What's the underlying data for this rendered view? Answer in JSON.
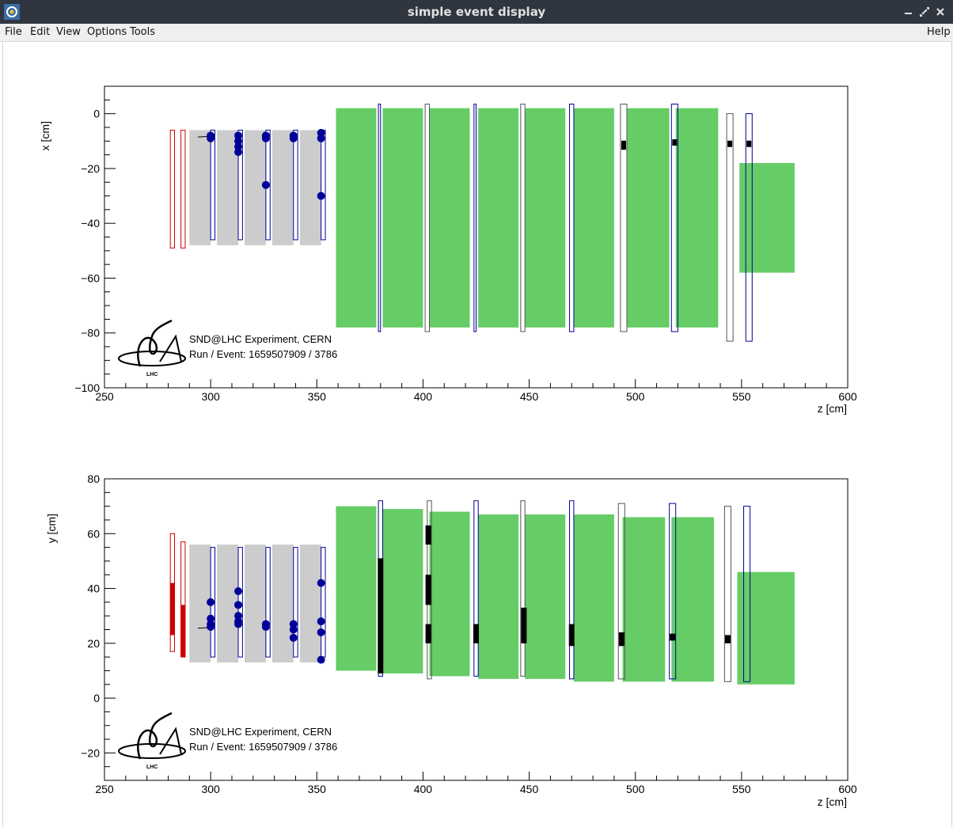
{
  "window": {
    "title": "simple event display"
  },
  "menu": {
    "file": "File",
    "edit": "Edit",
    "view": "View",
    "options": "Options",
    "tools": "Tools",
    "help": "Help"
  },
  "colors": {
    "titlebar": "#2f3640",
    "muon_block": "#66cc66",
    "target_wall": "#cccccc",
    "hit_blue": "#000099",
    "hit_black": "#000000",
    "veto_red": "#cc0000"
  },
  "icons": {
    "app": "root-app-icon",
    "minimize": "minimize-icon",
    "maximize": "maximize-icon",
    "close": "close-icon"
  },
  "label": {
    "experiment": "SND@LHC Experiment, CERN",
    "run_event": "Run / Event: 1659507909 / 3786",
    "logo_text": "LHC"
  },
  "chart_data": [
    {
      "type": "scatter",
      "view": "top",
      "xlabel": "z [cm]",
      "ylabel": "x [cm]",
      "xlim": [
        250,
        600
      ],
      "ylim": [
        -100,
        10
      ],
      "x_ticks": [
        250,
        300,
        350,
        400,
        450,
        500,
        550,
        600
      ],
      "y_ticks": [
        0,
        -20,
        -40,
        -60,
        -80,
        -100
      ],
      "y_tick_labels": [
        "0",
        "−20",
        "−40",
        "−60",
        "−80",
        "−100"
      ],
      "veto_planes": [
        [
          281,
          283,
          -49,
          -6
        ],
        [
          286,
          288,
          -49,
          -6
        ]
      ],
      "target_walls": [
        [
          290,
          300,
          -48,
          -6
        ],
        [
          303,
          313,
          -48,
          -6
        ],
        [
          316,
          326,
          -48,
          -6
        ],
        [
          329,
          339,
          -48,
          -6
        ],
        [
          342,
          352,
          -48,
          -6
        ]
      ],
      "target_planes": [
        [
          300,
          302,
          -46,
          -6
        ],
        [
          313,
          315,
          -46,
          -6
        ],
        [
          326,
          328,
          -46,
          -6
        ],
        [
          339,
          341,
          -46,
          -6
        ],
        [
          352,
          354,
          -46,
          -6
        ]
      ],
      "muon_blocks": [
        [
          359,
          378,
          -78,
          2
        ],
        [
          381,
          400,
          -78,
          2
        ],
        [
          403,
          422,
          -78,
          2
        ],
        [
          426,
          445,
          -78,
          2
        ],
        [
          448,
          467,
          -78,
          2
        ],
        [
          471,
          490,
          -78,
          2
        ],
        [
          496,
          516,
          -78,
          2
        ],
        [
          519,
          539,
          -78,
          2
        ],
        [
          549,
          575,
          -58,
          -18
        ]
      ],
      "muon_bars": [
        [
          379,
          380,
          -79.5,
          3.5
        ],
        [
          401,
          403,
          -79.5,
          3.5
        ],
        [
          424,
          425,
          -79.5,
          3.5
        ],
        [
          446,
          448,
          -79.5,
          3.5
        ],
        [
          469,
          471,
          -79.5,
          3.5
        ],
        [
          493,
          496,
          -79.5,
          3.5
        ],
        [
          517,
          520,
          -79.5,
          3.5
        ],
        [
          543,
          546,
          -83,
          0
        ],
        [
          552,
          555,
          -83,
          0
        ]
      ],
      "hits_blue": [
        [
          300,
          -9
        ],
        [
          300,
          -8
        ],
        [
          313,
          -8
        ],
        [
          313,
          -10
        ],
        [
          313,
          -12
        ],
        [
          313,
          -14
        ],
        [
          326,
          -8
        ],
        [
          326,
          -9
        ],
        [
          326,
          -26
        ],
        [
          339,
          -8
        ],
        [
          339,
          -9
        ],
        [
          352,
          -7
        ],
        [
          352,
          -9
        ],
        [
          352,
          -30
        ]
      ],
      "hits_black": [
        [
          494.5,
          -11
        ],
        [
          494.5,
          -12
        ],
        [
          518.5,
          -10.5
        ],
        [
          544.5,
          -11
        ],
        [
          553.5,
          -11
        ]
      ],
      "track": [
        [
          294,
          -8.5
        ],
        [
          300,
          -8.3
        ]
      ]
    },
    {
      "type": "scatter",
      "view": "side",
      "xlabel": "z [cm]",
      "ylabel": "y [cm]",
      "xlim": [
        250,
        600
      ],
      "ylim": [
        -30,
        80
      ],
      "x_ticks": [
        250,
        300,
        350,
        400,
        450,
        500,
        550,
        600
      ],
      "y_ticks": [
        80,
        60,
        40,
        20,
        0,
        -20
      ],
      "y_tick_labels": [
        "80",
        "60",
        "40",
        "20",
        "0",
        "−20"
      ],
      "veto_planes": [
        [
          281,
          283,
          17,
          60
        ],
        [
          286,
          288,
          15,
          57
        ]
      ],
      "veto_hits": [
        [
          281,
          283,
          23,
          42
        ],
        [
          286,
          288,
          15,
          34
        ]
      ],
      "target_walls": [
        [
          290,
          300,
          13,
          56
        ],
        [
          303,
          313,
          13,
          56
        ],
        [
          316,
          326,
          13,
          56
        ],
        [
          329,
          339,
          13,
          56
        ],
        [
          342,
          352,
          13,
          56
        ]
      ],
      "target_planes": [
        [
          300,
          302,
          15,
          55
        ],
        [
          313,
          315,
          15,
          55
        ],
        [
          326,
          328,
          15,
          55
        ],
        [
          339,
          341,
          15,
          55
        ],
        [
          352,
          354,
          15,
          55
        ]
      ],
      "muon_blocks": [
        [
          359,
          378,
          10,
          70
        ],
        [
          381,
          400,
          9,
          69
        ],
        [
          403,
          422,
          8,
          68
        ],
        [
          426,
          445,
          7,
          67
        ],
        [
          448,
          467,
          7,
          67
        ],
        [
          471,
          490,
          6,
          67
        ],
        [
          494,
          514,
          6,
          66
        ],
        [
          517,
          537,
          6,
          66
        ],
        [
          548,
          575,
          5,
          46
        ]
      ],
      "muon_bars": [
        [
          379,
          381,
          8,
          72
        ],
        [
          402,
          404,
          7,
          72
        ],
        [
          424,
          426,
          8,
          72
        ],
        [
          446,
          448,
          8,
          72
        ],
        [
          469,
          471,
          7,
          72
        ],
        [
          492,
          495,
          7,
          71
        ],
        [
          516,
          519,
          7,
          71
        ],
        [
          542,
          545,
          6,
          70
        ],
        [
          551,
          554,
          6,
          70
        ]
      ],
      "hits_blue": [
        [
          300,
          35
        ],
        [
          300,
          29
        ],
        [
          300,
          27
        ],
        [
          300,
          26
        ],
        [
          313,
          39
        ],
        [
          313,
          34
        ],
        [
          313,
          30
        ],
        [
          313,
          28
        ],
        [
          313,
          27
        ],
        [
          326,
          27
        ],
        [
          326,
          26
        ],
        [
          339,
          27
        ],
        [
          339,
          25
        ],
        [
          339,
          22
        ],
        [
          352,
          42
        ],
        [
          352,
          28
        ],
        [
          352,
          24
        ],
        [
          352,
          14
        ]
      ],
      "black_segments": [
        [
          380,
          9,
          51
        ],
        [
          402.5,
          34,
          45
        ],
        [
          402.5,
          56,
          63
        ],
        [
          402.5,
          20,
          27
        ],
        [
          425,
          20,
          27
        ],
        [
          447.5,
          20,
          33
        ],
        [
          470,
          19,
          27
        ],
        [
          493.5,
          19,
          24
        ],
        [
          517.5,
          21,
          23.5
        ],
        [
          543.5,
          20,
          23
        ]
      ],
      "track": [
        [
          294,
          25.5
        ],
        [
          300,
          25.8
        ]
      ]
    }
  ]
}
